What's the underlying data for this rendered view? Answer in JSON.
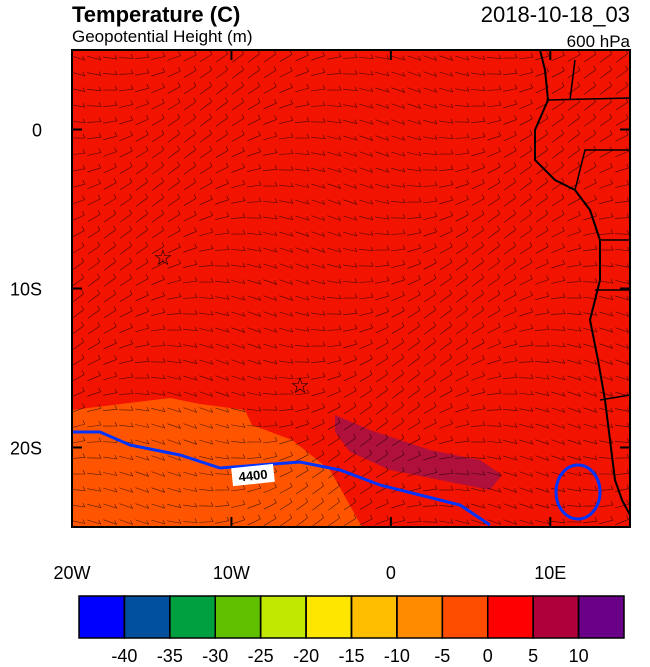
{
  "header": {
    "title": "Temperature (C)",
    "subtitle": "Geopotential Height (m)",
    "time": "2018-10-18_03",
    "level": "600 hPa"
  },
  "map": {
    "xlim": [
      -20,
      15
    ],
    "ylim": [
      -25,
      5
    ],
    "xticks": [
      {
        "value": -20,
        "label": "20W"
      },
      {
        "value": -10,
        "label": "10W"
      },
      0,
      {
        "value": 10,
        "label": "10E"
      }
    ],
    "yticks": [
      0,
      {
        "value": -10,
        "label": "10S"
      },
      {
        "value": -20,
        "label": "20S"
      }
    ],
    "contour_label": 4400
  },
  "colorbar": {
    "levels": [
      -40,
      -35,
      -30,
      -25,
      -20,
      -15,
      -10,
      -5,
      0,
      5,
      10
    ],
    "colors": [
      "#0000ff",
      "#00509e",
      "#00a040",
      "#5fc000",
      "#c0e800",
      "#ffe600",
      "#ffbf00",
      "#ff8c00",
      "#ff4d00",
      "#ff0000",
      "#b0003c",
      "#6a0088"
    ]
  }
}
